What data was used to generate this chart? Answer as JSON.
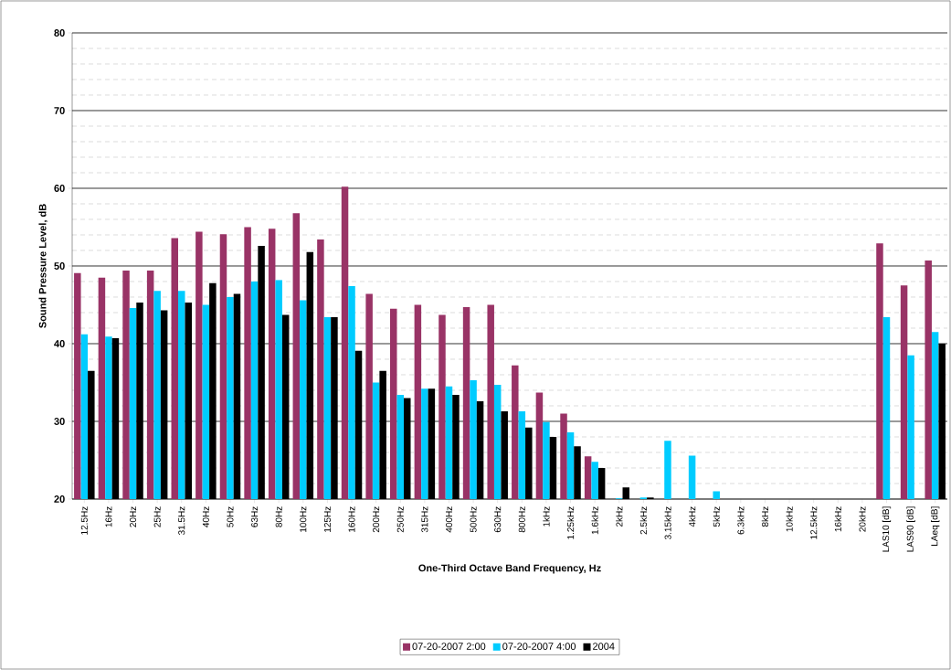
{
  "chart_data": {
    "type": "bar",
    "xlabel": "One-Third Octave Band Frequency, Hz",
    "ylabel": "Sound Pressure Level, dB",
    "categories": [
      "12.5Hz",
      "16Hz",
      "20Hz",
      "25Hz",
      "31.5Hz",
      "40Hz",
      "50Hz",
      "63Hz",
      "80Hz",
      "100Hz",
      "125Hz",
      "160Hz",
      "200Hz",
      "250Hz",
      "315Hz",
      "400Hz",
      "500Hz",
      "630Hz",
      "800Hz",
      "1kHz",
      "1.25kHz",
      "1.6kHz",
      "2kHz",
      "2.5kHz",
      "3.15kHz",
      "4kHz",
      "5kHz",
      "6.3kHz",
      "8kHz",
      "10kHz",
      "12.5kHz",
      "16kHz",
      "20kHz",
      "LAS10 [dB]",
      "LAS90 [dB]",
      "LAeq [dB]"
    ],
    "series": [
      {
        "name": "07-20-2007 2:00",
        "color": "#993366",
        "values": [
          49.1,
          48.5,
          49.4,
          49.4,
          53.6,
          54.4,
          54.1,
          55.0,
          54.8,
          56.8,
          53.4,
          60.2,
          46.4,
          44.5,
          45.0,
          43.7,
          44.7,
          45.0,
          37.2,
          33.7,
          31.0,
          25.5,
          null,
          null,
          null,
          null,
          null,
          null,
          null,
          null,
          null,
          null,
          null,
          52.9,
          47.5,
          50.7
        ]
      },
      {
        "name": "07-20-2007 4:00",
        "color": "#00ccff",
        "values": [
          41.2,
          40.9,
          44.6,
          46.8,
          46.8,
          45.0,
          46.0,
          48.0,
          48.2,
          45.6,
          43.4,
          47.4,
          35.0,
          33.4,
          34.2,
          34.5,
          35.3,
          34.7,
          31.3,
          29.9,
          28.6,
          24.8,
          20.1,
          20.2,
          27.5,
          25.6,
          21.0,
          null,
          null,
          null,
          null,
          null,
          null,
          43.4,
          38.5,
          41.5
        ]
      },
      {
        "name": "2004",
        "color": "#000000",
        "values": [
          36.5,
          40.7,
          45.3,
          44.3,
          45.3,
          47.8,
          46.4,
          52.6,
          43.7,
          51.8,
          43.4,
          39.1,
          36.5,
          33.0,
          34.2,
          33.4,
          32.6,
          31.3,
          29.2,
          28.0,
          26.8,
          24.0,
          21.5,
          20.2,
          null,
          null,
          null,
          null,
          null,
          null,
          null,
          null,
          null,
          null,
          null,
          40.0
        ]
      }
    ],
    "ylim": [
      20,
      80
    ],
    "yticks": [
      20,
      30,
      40,
      50,
      60,
      70,
      80
    ],
    "grid": "y",
    "legend": "bottom"
  }
}
